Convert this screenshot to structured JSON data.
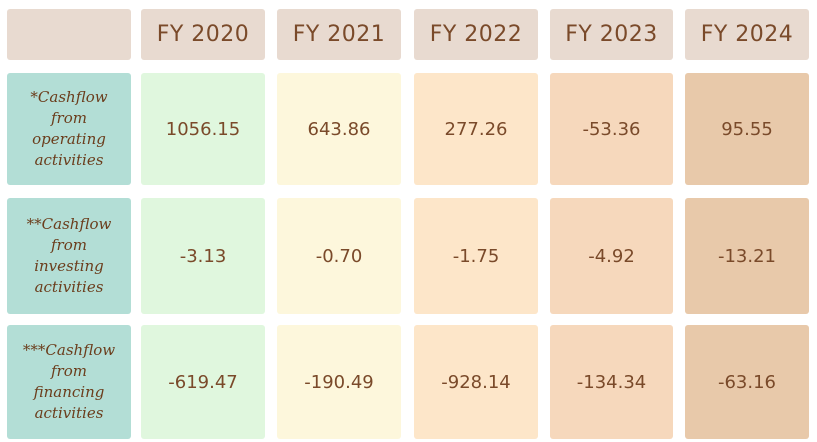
{
  "table": {
    "columns": [
      "FY 2020",
      "FY 2021",
      "FY 2022",
      "FY 2023",
      "FY 2024"
    ],
    "rows": [
      {
        "label_lines": [
          "*Cashflow",
          "from",
          "operating",
          "activities"
        ],
        "values": [
          "1056.15",
          "643.86",
          "277.26",
          "-53.36",
          "95.55"
        ]
      },
      {
        "label_lines": [
          "**Cashflow",
          "from",
          "investing",
          "activities"
        ],
        "values": [
          "-3.13",
          "-0.70",
          "-1.75",
          "-4.92",
          "-13.21"
        ]
      },
      {
        "label_lines": [
          "***Cashflow",
          "from",
          "financing",
          "activities"
        ],
        "values": [
          "-619.47",
          "-190.49",
          "-928.14",
          "-134.34",
          "-63.16"
        ]
      }
    ]
  },
  "colors": {
    "header_fill": "#e8dad0",
    "label_fill": "#b3ded6",
    "column_fills": [
      "#e0f7de",
      "#fdf7dc",
      "#fde6c9",
      "#f6d8bc",
      "#e8c9aa"
    ],
    "text": "#7a4a2a"
  }
}
